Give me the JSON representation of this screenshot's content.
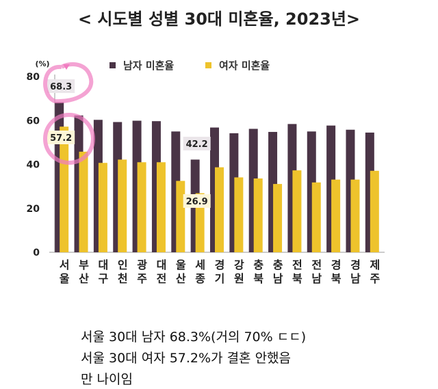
{
  "chart_data": {
    "type": "bar",
    "title": "< 시도별 성별 30대 미혼율, 2023년>",
    "yunit": "(%)",
    "ylim": [
      0,
      80
    ],
    "yticks": [
      0,
      20,
      40,
      60,
      80
    ],
    "grid": false,
    "legend_position": "top",
    "categories": [
      "서울",
      "부산",
      "대구",
      "인천",
      "광주",
      "대전",
      "울산",
      "세종",
      "경기",
      "강원",
      "충북",
      "충남",
      "전북",
      "전남",
      "경북",
      "경남",
      "제주"
    ],
    "series": [
      {
        "name": "남자 미혼율",
        "color": "#4a3446",
        "values": [
          68.3,
          62.3,
          60.3,
          59.3,
          59.9,
          59.7,
          55.0,
          42.2,
          56.8,
          54.2,
          56.2,
          54.8,
          58.4,
          55.0,
          57.7,
          55.8,
          54.5
        ]
      },
      {
        "name": "여자 미혼율",
        "color": "#eec32c",
        "values": [
          57.2,
          45.8,
          40.7,
          42.2,
          41.0,
          41.0,
          32.5,
          26.9,
          38.7,
          34.1,
          33.6,
          31.1,
          37.3,
          31.8,
          33.1,
          33.1,
          37.1
        ]
      }
    ],
    "data_labels": [
      {
        "category": "서울",
        "series": "남자 미혼율",
        "text": "68.3"
      },
      {
        "category": "서울",
        "series": "여자 미혼율",
        "text": "57.2"
      },
      {
        "category": "세종",
        "series": "남자 미혼율",
        "text": "42.2"
      },
      {
        "category": "세종",
        "series": "여자 미혼율",
        "text": "26.9"
      }
    ]
  },
  "caption": [
    "서울 30대 남자 68.3%(거의 70% ㄷㄷ)",
    "서울 30대 여자 57.2%가 결혼 안했음",
    "만 나이임"
  ],
  "annotation_color": "#f07cc0"
}
